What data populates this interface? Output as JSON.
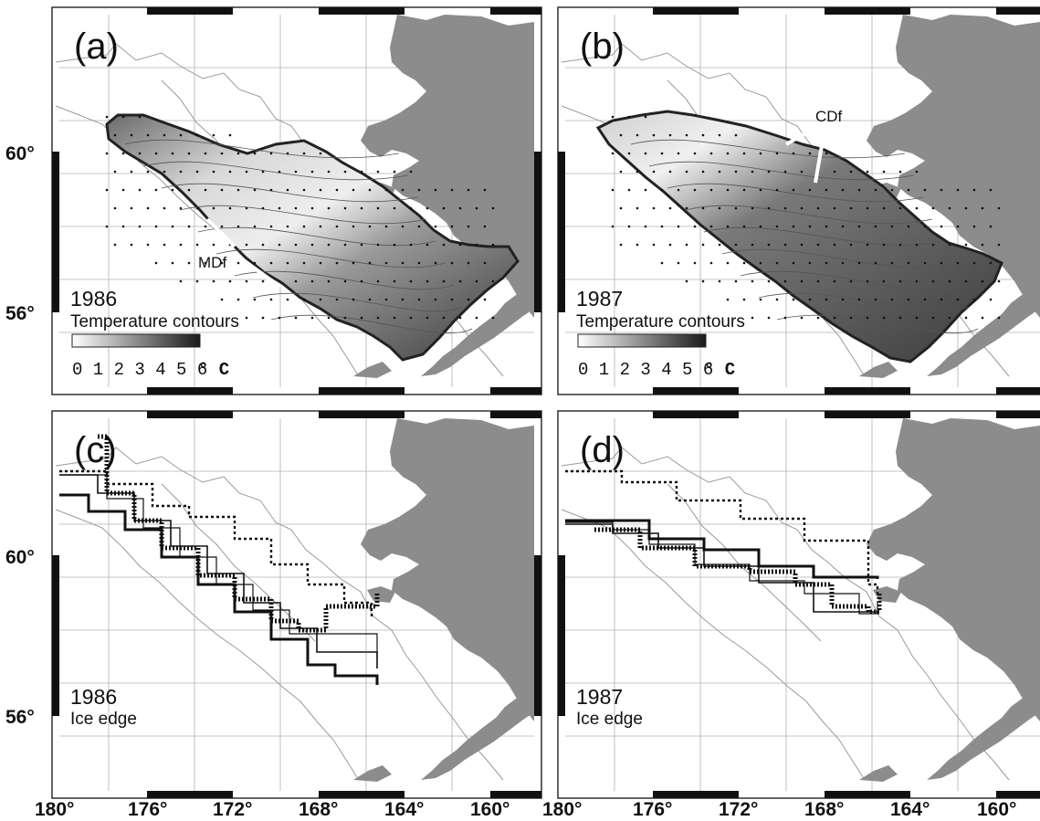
{
  "panels": [
    {
      "letter": "(a)",
      "year": "1986",
      "sublabel": "Temperature contours",
      "type": "temperature",
      "colorbar_ticks": "0 1 2 3 4 5 6",
      "colorbar_unit": "° C",
      "front_label": "MDf"
    },
    {
      "letter": "(b)",
      "year": "1987",
      "sublabel": "Temperature contours",
      "type": "temperature",
      "colorbar_ticks": "0 1 2 3 4 5 6",
      "colorbar_unit": "° C",
      "front_label": "CDf"
    },
    {
      "letter": "(c)",
      "year": "1986",
      "sublabel": "Ice edge",
      "type": "ice"
    },
    {
      "letter": "(d)",
      "year": "1987",
      "sublabel": "Ice edge",
      "type": "ice"
    }
  ],
  "latitude_labels": [
    "60°",
    "56°"
  ],
  "longitude_labels": [
    "180°",
    "176°",
    "172°",
    "168°",
    "164°",
    "160°"
  ],
  "colorbar_range": [
    0,
    6
  ],
  "colors": {
    "land": "#8c8c8c",
    "shelf_contour": "#9a9a9a",
    "grid": "#b0b0b0",
    "frame": "#222222",
    "data_dark": "#333333",
    "data_light": "#e8e8e8"
  }
}
